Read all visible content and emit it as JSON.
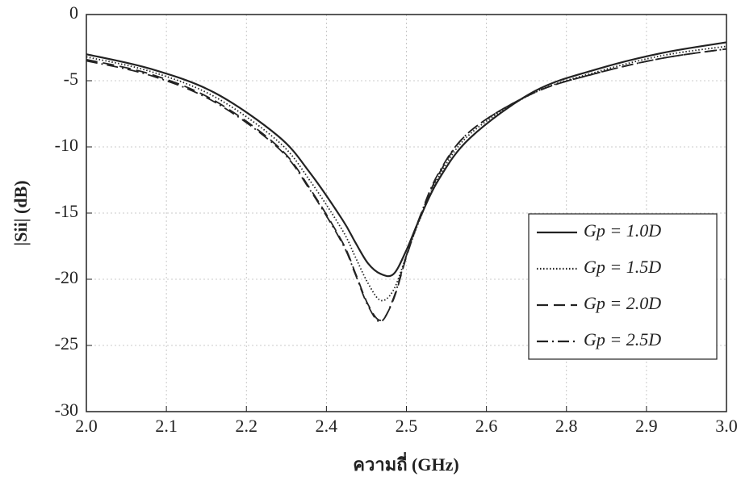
{
  "chart_data": {
    "type": "line",
    "x_label": "ความถี่ (GHz)",
    "y_label": "|Sii| (dB)",
    "x": [
      2.0,
      2.1,
      2.2,
      2.3,
      2.35,
      2.4,
      2.42,
      2.44,
      2.46,
      2.48,
      2.5,
      2.52,
      2.55,
      2.6,
      2.7,
      2.8,
      2.9,
      3.0
    ],
    "series": [
      {
        "name": "Gp = 1.0D",
        "color": "#222222",
        "dash": "solid",
        "values": [
          -3.0,
          -4.1,
          -5.9,
          -9.2,
          -12.0,
          -15.5,
          -17.2,
          -18.8,
          -19.6,
          -19.6,
          -17.8,
          -15.5,
          -12.5,
          -9.3,
          -5.8,
          -4.1,
          -2.9,
          -2.1
        ]
      },
      {
        "name": "Gp = 1.5D",
        "color": "#222222",
        "dash": "dotted",
        "values": [
          -3.2,
          -4.3,
          -6.2,
          -9.6,
          -12.6,
          -16.3,
          -18.3,
          -20.3,
          -21.6,
          -20.8,
          -18.2,
          -15.6,
          -12.3,
          -9.0,
          -5.9,
          -4.3,
          -3.1,
          -2.4
        ]
      },
      {
        "name": "Gp = 2.0D",
        "color": "#222222",
        "dash": "dashed",
        "values": [
          -3.4,
          -4.5,
          -6.5,
          -10.0,
          -13.2,
          -17.2,
          -19.5,
          -21.9,
          -23.1,
          -21.5,
          -18.3,
          -15.5,
          -12.1,
          -8.8,
          -5.9,
          -4.4,
          -3.3,
          -2.6
        ]
      },
      {
        "name": "Gp = 2.5D",
        "color": "#222222",
        "dash": "dashdot",
        "values": [
          -3.5,
          -4.6,
          -6.6,
          -10.1,
          -13.3,
          -17.3,
          -19.6,
          -22.0,
          -23.2,
          -21.4,
          -18.2,
          -15.4,
          -12.0,
          -8.8,
          -5.9,
          -4.4,
          -3.3,
          -2.6
        ]
      }
    ],
    "xlim": [
      2.0,
      3.0
    ],
    "xticks": [
      {
        "value": 2.0,
        "label": "2.0"
      },
      {
        "value": 2.125,
        "label": "2.1"
      },
      {
        "value": 2.25,
        "label": "2.2"
      },
      {
        "value": 2.375,
        "label": "2.4"
      },
      {
        "value": 2.5,
        "label": "2.5"
      },
      {
        "value": 2.625,
        "label": "2.6"
      },
      {
        "value": 2.75,
        "label": "2.8"
      },
      {
        "value": 2.875,
        "label": "2.9"
      },
      {
        "value": 3.0,
        "label": "3.0"
      }
    ],
    "ylim": [
      -30,
      0
    ],
    "yticks": [
      0,
      -5,
      -10,
      -15,
      -20,
      -25,
      -30
    ],
    "grid": true,
    "legend": "right"
  }
}
